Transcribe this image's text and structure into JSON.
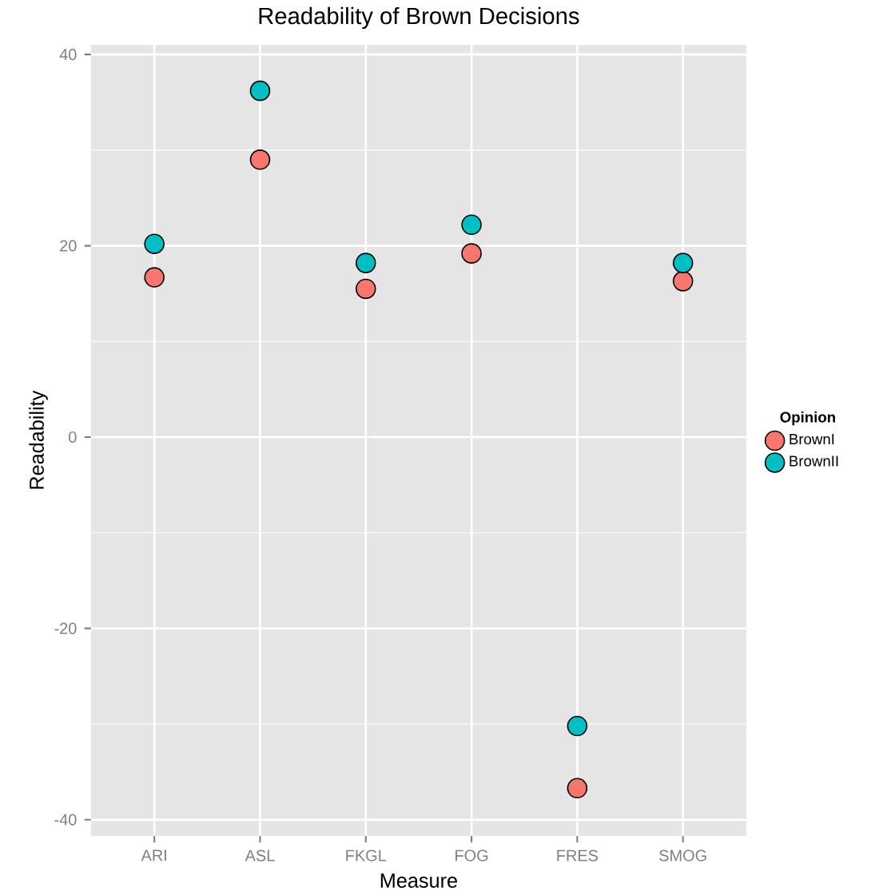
{
  "chart_data": {
    "type": "scatter",
    "title": "Readability of Brown Decisions",
    "xlabel": "Measure",
    "ylabel": "Readability",
    "legend_title": "Opinion",
    "categories": [
      "ARI",
      "ASL",
      "FKGL",
      "FOG",
      "FRES",
      "SMOG"
    ],
    "series": [
      {
        "name": "BrownI",
        "color": "#f8766d",
        "values": [
          16.7,
          29.0,
          15.5,
          19.2,
          -36.7,
          16.3
        ]
      },
      {
        "name": "BrownII",
        "color": "#00bfc4",
        "values": [
          20.2,
          36.2,
          18.2,
          22.2,
          -30.2,
          18.2
        ]
      }
    ],
    "ylim": [
      -41.7,
      41
    ],
    "yticks": [
      -40,
      -20,
      0,
      20,
      40
    ],
    "grid": true,
    "legend": "right",
    "marker": "circle"
  }
}
